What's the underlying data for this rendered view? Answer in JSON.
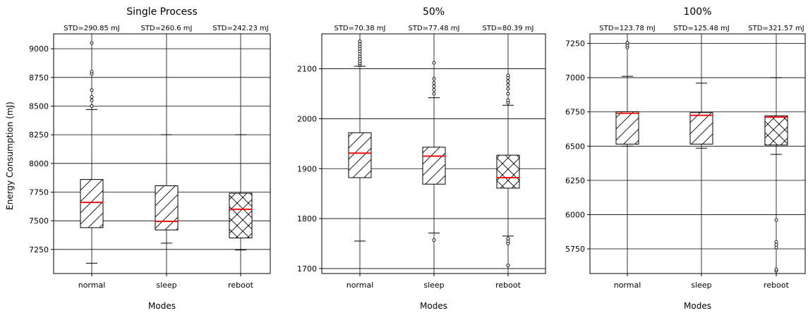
{
  "figure": {
    "ylabel": "Energy Consumption (mJ)",
    "colors": {
      "median": "#ee1111",
      "box": "#000000",
      "grid": "#000000",
      "background": "#ffffff"
    }
  },
  "chart_data": [
    {
      "type": "box",
      "title": "Single Process",
      "xlabel": "Modes",
      "ylabel": "Energy Consumption (mJ)",
      "ylim": [
        7040,
        9130
      ],
      "yticks": [
        7250,
        7500,
        7750,
        8000,
        8250,
        8500,
        8750,
        9000
      ],
      "ytick_labels": [
        "7250",
        "7500",
        "7750",
        "8000",
        "8250",
        "8500",
        "8750",
        "9000"
      ],
      "grid": "horizontal and vertical",
      "categories": [
        "normal",
        "sleep",
        "reboot"
      ],
      "std_labels": [
        "STD=290.85 mJ",
        "STD=260.6 mJ",
        "STD=242.23 mJ"
      ],
      "boxes": [
        {
          "category": "normal",
          "hatch": "diagonal",
          "whisker_low": 7130,
          "q1": 7440,
          "median": 7660,
          "q3": 7860,
          "whisker_high": 8470,
          "outliers": [
            8500,
            8550,
            8580,
            8640,
            8780,
            8800,
            9050
          ]
        },
        {
          "category": "sleep",
          "hatch": "diagonal",
          "whisker_low": 7305,
          "q1": 7420,
          "median": 7495,
          "q3": 7805,
          "whisker_high": 8250,
          "outliers": []
        },
        {
          "category": "reboot",
          "hatch": "crosshatch",
          "whisker_low": 7245,
          "q1": 7350,
          "median": 7600,
          "q3": 7740,
          "whisker_high": 8250,
          "outliers": []
        }
      ]
    },
    {
      "type": "box",
      "title": "50%",
      "xlabel": "Modes",
      "ylabel": "",
      "ylim": [
        1690,
        2170
      ],
      "yticks": [
        1700,
        1800,
        1900,
        2000,
        2100
      ],
      "ytick_labels": [
        "1700",
        "1800",
        "1900",
        "2000",
        "2100"
      ],
      "grid": "horizontal and vertical",
      "categories": [
        "normal",
        "sleep",
        "reboot"
      ],
      "std_labels": [
        "STD=70.38 mJ",
        "STD=77.48 mJ",
        "STD=80.39 mJ"
      ],
      "boxes": [
        {
          "category": "normal",
          "hatch": "diagonal",
          "whisker_low": 1755,
          "q1": 1882,
          "median": 1931,
          "q3": 1972,
          "whisker_high": 2105,
          "outliers": [
            2108,
            2111,
            2115,
            2120,
            2125,
            2130,
            2135,
            2140,
            2145,
            2150,
            2155
          ]
        },
        {
          "category": "sleep",
          "hatch": "diagonal",
          "whisker_low": 1771,
          "q1": 1869,
          "median": 1925,
          "q3": 1943,
          "whisker_high": 2042,
          "outliers": [
            1757,
            2050,
            2058,
            2065,
            2072,
            2080,
            2112
          ]
        },
        {
          "category": "reboot",
          "hatch": "crosshatch",
          "whisker_low": 1765,
          "q1": 1861,
          "median": 1882,
          "q3": 1927,
          "whisker_high": 2027,
          "outliers": [
            1706,
            1750,
            1755,
            1760,
            2032,
            2037,
            2050,
            2060,
            2068,
            2075,
            2082,
            2087
          ]
        }
      ]
    },
    {
      "type": "box",
      "title": "100%",
      "xlabel": "Modes",
      "ylabel": "",
      "ylim": [
        5570,
        7320
      ],
      "yticks": [
        5750,
        6000,
        6250,
        6500,
        6750,
        7000,
        7250
      ],
      "ytick_labels": [
        "5750",
        "6000",
        "6250",
        "6500",
        "6750",
        "7000",
        "7250"
      ],
      "grid": "horizontal and vertical",
      "categories": [
        "normal",
        "sleep",
        "reboot"
      ],
      "std_labels": [
        "STD=123.78 mJ",
        "STD=125.48 mJ",
        "STD=321.57 mJ"
      ],
      "boxes": [
        {
          "category": "normal",
          "hatch": "diagonal",
          "whisker_low": 6500,
          "q1": 6515,
          "median": 6740,
          "q3": 6752,
          "whisker_high": 7010,
          "outliers": [
            7220,
            7235,
            7255
          ]
        },
        {
          "category": "sleep",
          "hatch": "diagonal",
          "whisker_low": 6485,
          "q1": 6515,
          "median": 6725,
          "q3": 6745,
          "whisker_high": 6960,
          "outliers": []
        },
        {
          "category": "reboot",
          "hatch": "crosshatch",
          "whisker_low": 6440,
          "q1": 6508,
          "median": 6712,
          "q3": 6722,
          "whisker_high": 7000,
          "outliers": [
            5590,
            5600,
            5760,
            5780,
            5800,
            5960
          ]
        }
      ]
    }
  ]
}
